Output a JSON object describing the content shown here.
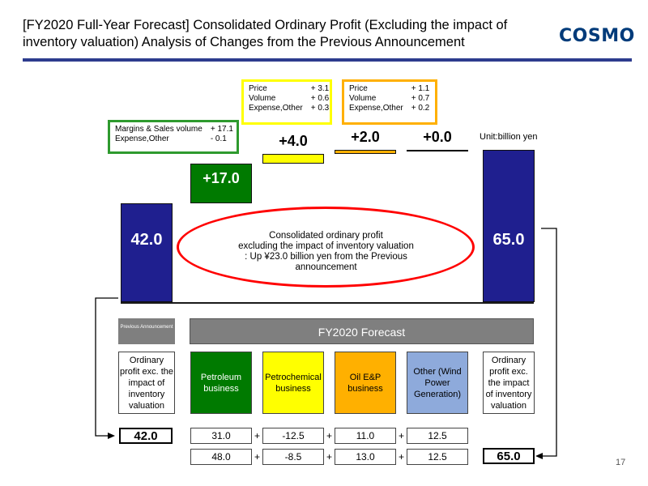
{
  "header": {
    "title_line1": "[FY2020 Full-Year Forecast] Consolidated Ordinary Profit (Excluding the impact of",
    "title_line2": "inventory valuation) Analysis of Changes from the Previous Announcement",
    "logo": "COSMO"
  },
  "colors": {
    "navy": "#1f1f8f",
    "green": "#007a00",
    "yellow": "#ffff00",
    "orange": "#ffb000",
    "light_blue": "#8eaadb",
    "red": "#ff0000",
    "gray": "#7f7f7f"
  },
  "chart_data": {
    "type": "bar",
    "subtype": "waterfall",
    "unit": "Unit:billion yen",
    "categories": [
      "Previous Announcement",
      "Petroleum business",
      "Petrochemical business",
      "Oil E&P business",
      "Other (Wind Power Generation)",
      "FY2020 Forecast"
    ],
    "start": {
      "value": 42.0,
      "label": "42.0"
    },
    "deltas": [
      {
        "name": "Petroleum business",
        "value": 17.0,
        "label": "+17.0",
        "color": "#007a00"
      },
      {
        "name": "Petrochemical business",
        "value": 4.0,
        "label": "+4.0",
        "color": "#ffff00"
      },
      {
        "name": "Oil E&P business",
        "value": 2.0,
        "label": "+2.0",
        "color": "#ffb000"
      },
      {
        "name": "Other (Wind Power Generation)",
        "value": 0.0,
        "label": "+0.0",
        "color": "#000000"
      }
    ],
    "end": {
      "value": 65.0,
      "label": "65.0"
    }
  },
  "callouts": {
    "petroleum": {
      "rows": [
        {
          "label": "Margins & Sales volume",
          "value": "+ 17.1"
        },
        {
          "label": "Expense,Other",
          "value": "-   0.1"
        }
      ]
    },
    "petrochemical": {
      "rows": [
        {
          "label": "Price",
          "value": "+ 3.1"
        },
        {
          "label": "Volume",
          "value": "+ 0.6"
        },
        {
          "label": "Expense,Other",
          "value": "+ 0.3"
        }
      ]
    },
    "oil_ep": {
      "rows": [
        {
          "label": "Price",
          "value": "+ 1.1"
        },
        {
          "label": "Volume",
          "value": "+ 0.7"
        },
        {
          "label": "Expense,Other",
          "value": "+ 0.2"
        }
      ]
    }
  },
  "ellipse": {
    "line1": "Consolidated ordinary profit",
    "line2": "excluding the impact of inventory valuation",
    "line3": ": Up ¥23.0 billion yen from the Previous",
    "line4": "announcement"
  },
  "table": {
    "prev_header": "Previous Announcement",
    "forecast_header": "FY2020 Forecast",
    "left_label": "Ordinary profit exc. the impact of inventory valuation",
    "right_label": "Ordinary profit exc. the impact of inventory valuation",
    "segments": [
      {
        "name": "Petroleum business",
        "color": "#007a00",
        "text_color": "#ffffff"
      },
      {
        "name": "Petrochemical business",
        "color": "#ffff00",
        "text_color": "#000000"
      },
      {
        "name": "Oil E&P business",
        "color": "#ffb000",
        "text_color": "#000000"
      },
      {
        "name": "Other (Wind Power Generation)",
        "color": "#8eaadb",
        "text_color": "#000000"
      }
    ],
    "prev_total": "42.0",
    "forecast_total": "65.0",
    "row_prev": [
      "31.0",
      "-12.5",
      "11.0",
      "12.5"
    ],
    "row_forecast": [
      "48.0",
      "-8.5",
      "13.0",
      "12.5"
    ],
    "plus": "+"
  },
  "page_number": "17"
}
